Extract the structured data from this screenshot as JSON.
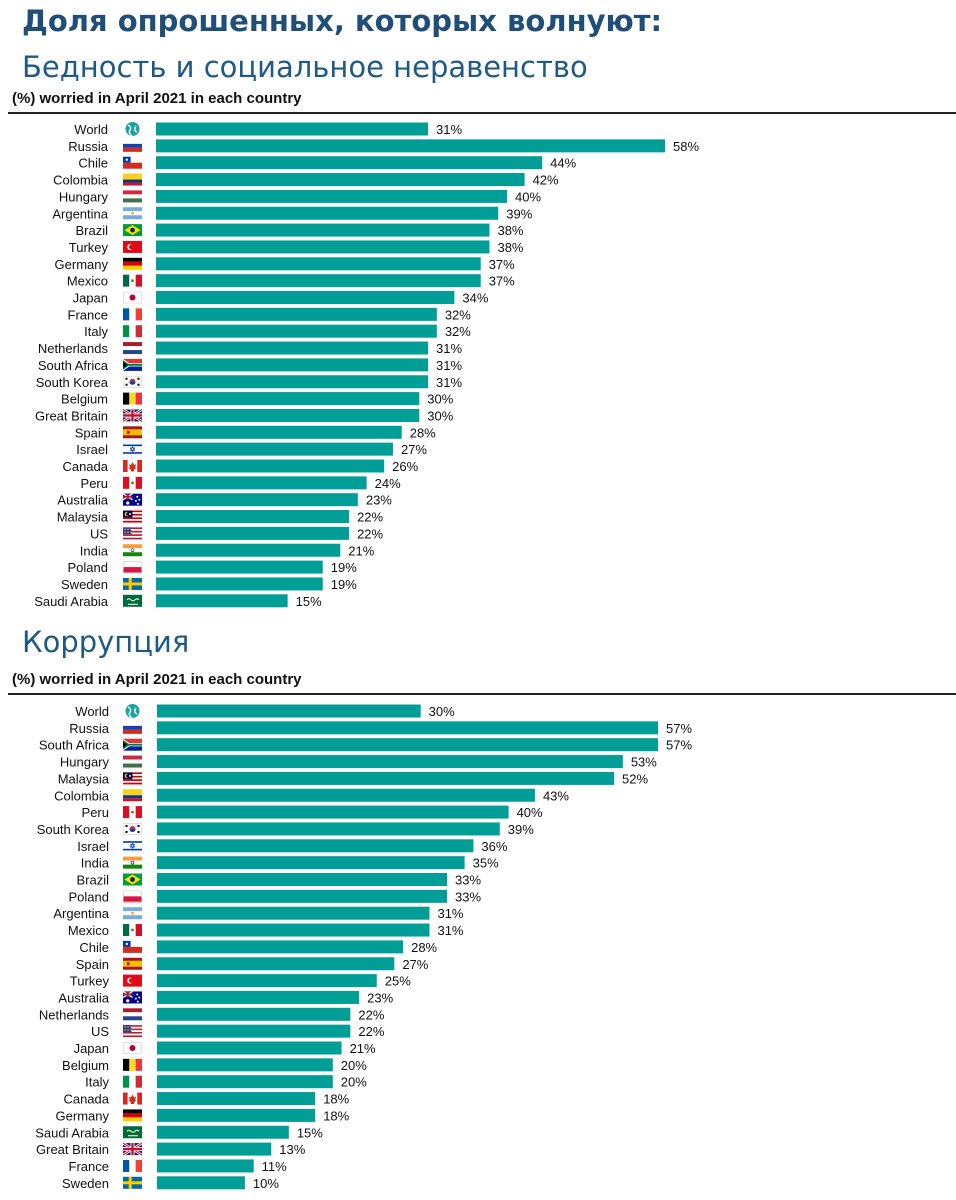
{
  "page": {
    "title": "Доля опрошенных, которых волнуют:"
  },
  "sections": [
    {
      "heading": "Бедность и социальное неравенство",
      "subtitle": "(%) worried in April 2021 in each country"
    },
    {
      "heading": "Коррупция",
      "subtitle": "(%) worried in April 2021 in each country"
    }
  ],
  "colors": {
    "bar": "#009e96",
    "title": "#1f4e79"
  },
  "chart_data": [
    {
      "type": "bar",
      "orientation": "horizontal",
      "title": "Бедность и социальное неравенство",
      "subtitle": "(%) worried in April 2021 in each country",
      "value_suffix": "%",
      "categories": [
        "World",
        "Russia",
        "Chile",
        "Colombia",
        "Hungary",
        "Argentina",
        "Brazil",
        "Turkey",
        "Germany",
        "Mexico",
        "Japan",
        "France",
        "Italy",
        "Netherlands",
        "South Africa",
        "South Korea",
        "Belgium",
        "Great Britain",
        "Spain",
        "Israel",
        "Canada",
        "Peru",
        "Australia",
        "Malaysia",
        "US",
        "India",
        "Poland",
        "Sweden",
        "Saudi Arabia"
      ],
      "values": [
        31,
        58,
        44,
        42,
        40,
        39,
        38,
        38,
        37,
        37,
        34,
        32,
        32,
        31,
        31,
        31,
        30,
        30,
        28,
        27,
        26,
        24,
        23,
        22,
        22,
        21,
        19,
        19,
        15
      ],
      "xlim": [
        0,
        58
      ],
      "grid": false,
      "legend": "none"
    },
    {
      "type": "bar",
      "orientation": "horizontal",
      "title": "Коррупция",
      "subtitle": "(%) worried in April 2021 in each country",
      "value_suffix": "%",
      "categories": [
        "World",
        "Russia",
        "South Africa",
        "Hungary",
        "Malaysia",
        "Colombia",
        "Peru",
        "South Korea",
        "Israel",
        "India",
        "Brazil",
        "Poland",
        "Argentina",
        "Mexico",
        "Chile",
        "Spain",
        "Turkey",
        "Australia",
        "Netherlands",
        "US",
        "Japan",
        "Belgium",
        "Italy",
        "Canada",
        "Germany",
        "Saudi Arabia",
        "Great Britain",
        "France",
        "Sweden"
      ],
      "values": [
        30,
        57,
        57,
        53,
        52,
        43,
        40,
        39,
        36,
        35,
        33,
        33,
        31,
        31,
        28,
        27,
        25,
        23,
        22,
        22,
        21,
        20,
        20,
        18,
        18,
        15,
        13,
        11,
        10
      ],
      "xlim": [
        0,
        57
      ],
      "grid": false,
      "legend": "none"
    }
  ]
}
